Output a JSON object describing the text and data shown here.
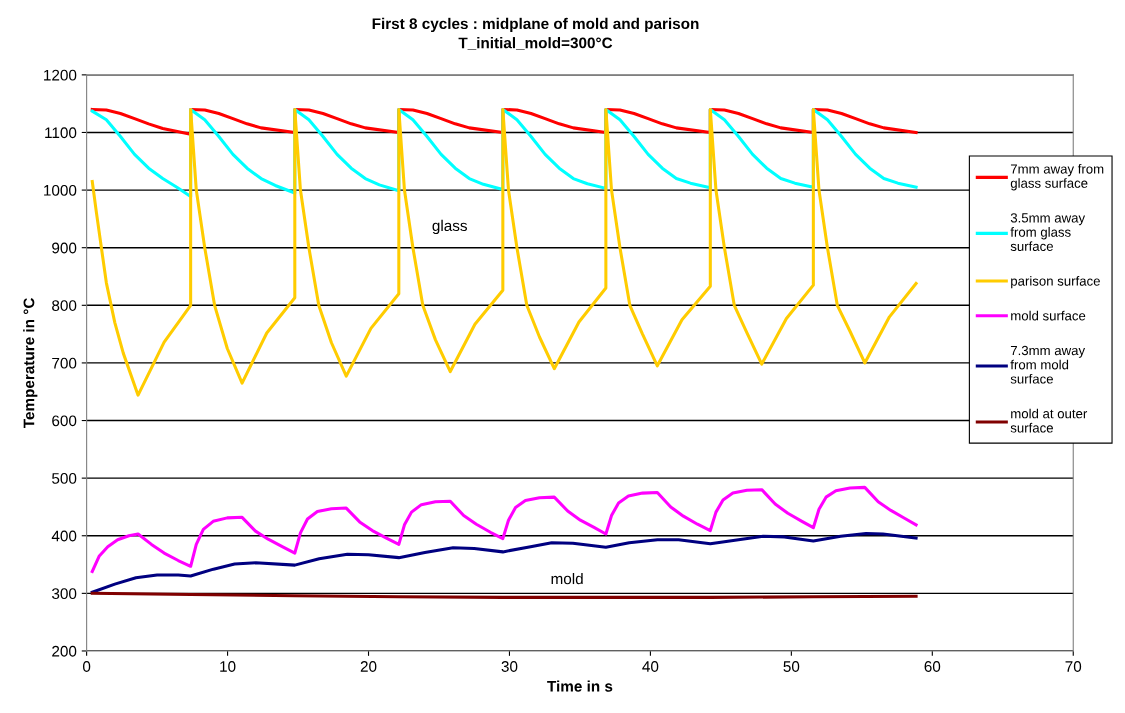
{
  "chart_data": {
    "type": "line",
    "title": "First 8 cycles : midplane of mold and parison",
    "subtitle": "T_initial_mold=300°C",
    "xlabel": "Time in s",
    "ylabel": "Temperature in °C",
    "xlim": [
      0,
      70
    ],
    "xticks": [
      0,
      10,
      20,
      30,
      40,
      50,
      60,
      70
    ],
    "ylim": [
      200,
      1200
    ],
    "yticks": [
      200,
      300,
      400,
      500,
      600,
      700,
      800,
      900,
      1000,
      1100,
      1200
    ],
    "grid": "y",
    "legend": "right",
    "marker": "none",
    "line_style": "solid",
    "annotations": [
      "glass",
      "mold"
    ],
    "series": [
      {
        "name": "7mm away from\nglass surface",
        "color": "#ff0000",
        "x": [
          0.4,
          1.4,
          2.4,
          3.4,
          4.4,
          5.4,
          7.38,
          7.38,
          8.38,
          9.38,
          10.38,
          11.38,
          12.38,
          14.77,
          14.77,
          15.77,
          16.77,
          17.77,
          18.77,
          19.77,
          22.15,
          22.15,
          23.15,
          24.15,
          25.15,
          26.15,
          27.15,
          29.53,
          29.53,
          30.53,
          31.53,
          32.53,
          33.53,
          34.53,
          36.84,
          36.84,
          37.84,
          38.84,
          39.84,
          40.84,
          41.84,
          44.25,
          44.25,
          45.25,
          46.25,
          47.25,
          48.25,
          49.25,
          51.56,
          51.56,
          52.56,
          53.56,
          54.56,
          55.56,
          56.56,
          58.85
        ],
        "values": [
          1140,
          1139,
          1133,
          1124,
          1115,
          1107,
          1097,
          1140,
          1139,
          1133,
          1124,
          1115,
          1108,
          1100,
          1140,
          1139,
          1133,
          1124,
          1115,
          1108,
          1100,
          1140,
          1139,
          1133,
          1124,
          1115,
          1108,
          1100,
          1140,
          1139,
          1133,
          1124,
          1115,
          1108,
          1100,
          1140,
          1139,
          1133,
          1124,
          1115,
          1108,
          1100,
          1140,
          1139,
          1133,
          1124,
          1115,
          1108,
          1100,
          1140,
          1139,
          1133,
          1124,
          1115,
          1108,
          1100
        ]
      },
      {
        "name": "3.5mm away\nfrom glass\nsurface",
        "color": "#00ffff",
        "x": [
          0.4,
          1.4,
          2.4,
          3.4,
          4.4,
          5.4,
          6.4,
          7.38,
          7.38,
          8.38,
          9.38,
          10.38,
          11.38,
          12.38,
          13.38,
          14.77,
          14.77,
          15.77,
          16.77,
          17.77,
          18.77,
          19.77,
          20.77,
          22.15,
          22.15,
          23.15,
          24.15,
          25.15,
          26.15,
          27.15,
          28.15,
          29.53,
          29.53,
          30.53,
          31.53,
          32.53,
          33.53,
          34.53,
          35.53,
          36.84,
          36.84,
          37.84,
          38.84,
          39.84,
          40.84,
          41.84,
          42.84,
          44.25,
          44.25,
          45.25,
          46.25,
          47.25,
          48.25,
          49.25,
          50.25,
          51.56,
          51.56,
          52.56,
          53.56,
          54.56,
          55.56,
          56.56,
          57.56,
          58.85
        ],
        "values": [
          1137,
          1122,
          1093,
          1062,
          1038,
          1020,
          1005,
          989,
          1140,
          1122,
          1093,
          1062,
          1038,
          1020,
          1008,
          995,
          1140,
          1122,
          1093,
          1062,
          1038,
          1020,
          1009,
          999,
          1140,
          1122,
          1093,
          1062,
          1038,
          1020,
          1010,
          1001,
          1140,
          1122,
          1093,
          1062,
          1038,
          1020,
          1011,
          1003,
          1140,
          1122,
          1093,
          1062,
          1038,
          1020,
          1012,
          1004,
          1140,
          1122,
          1093,
          1062,
          1038,
          1020,
          1012,
          1005,
          1140,
          1122,
          1093,
          1062,
          1038,
          1020,
          1012,
          1005
        ]
      },
      {
        "name": "parison surface",
        "color": "#ffcc00",
        "x": [
          0.4,
          0.7,
          1.4,
          2.0,
          2.6,
          3.65,
          5.5,
          7.38,
          7.38,
          7.78,
          8.38,
          9.08,
          9.98,
          11.03,
          12.78,
          14.77,
          14.77,
          15.17,
          15.77,
          16.47,
          17.37,
          18.42,
          20.17,
          22.15,
          22.15,
          22.55,
          23.15,
          23.85,
          24.75,
          25.8,
          27.55,
          29.53,
          29.53,
          29.93,
          30.53,
          31.23,
          32.13,
          33.18,
          34.93,
          36.84,
          36.84,
          37.24,
          37.84,
          38.54,
          39.44,
          40.49,
          42.24,
          44.25,
          44.25,
          44.65,
          45.25,
          45.95,
          46.85,
          47.9,
          49.65,
          51.56,
          51.56,
          51.96,
          52.56,
          53.26,
          54.16,
          55.21,
          56.96,
          58.85
        ],
        "values": [
          1015,
          960,
          839,
          770,
          717,
          644,
          736,
          800,
          1140,
          1000,
          900,
          800,
          725,
          665,
          752,
          813,
          1140,
          1000,
          900,
          800,
          735,
          677,
          760,
          820,
          1140,
          1000,
          900,
          800,
          740,
          685,
          767,
          826,
          1140,
          1000,
          900,
          800,
          745,
          690,
          771,
          830,
          1140,
          1000,
          900,
          800,
          750,
          695,
          775,
          833,
          1140,
          1000,
          900,
          800,
          752,
          698,
          777,
          835,
          1140,
          1000,
          900,
          800,
          755,
          700,
          780,
          838
        ]
      },
      {
        "name": "mold surface",
        "color": "#ff00ff",
        "x": [
          0.4,
          0.9,
          1.5,
          2.2,
          3.0,
          3.65,
          4.6,
          5.5,
          6.5,
          7.38,
          7.78,
          8.28,
          8.98,
          9.98,
          11.03,
          11.98,
          12.88,
          13.88,
          14.77,
          15.17,
          15.67,
          16.37,
          17.37,
          18.42,
          19.37,
          20.27,
          21.27,
          22.15,
          22.55,
          23.05,
          23.75,
          24.75,
          25.8,
          26.75,
          27.65,
          28.65,
          29.53,
          29.93,
          30.43,
          31.13,
          32.13,
          33.18,
          34.13,
          35.03,
          36.03,
          36.84,
          37.24,
          37.74,
          38.44,
          39.44,
          40.49,
          41.44,
          42.34,
          43.34,
          44.25,
          44.65,
          45.15,
          45.85,
          46.85,
          47.9,
          48.85,
          49.75,
          50.75,
          51.56,
          51.96,
          52.46,
          53.16,
          54.16,
          55.21,
          56.16,
          57.06,
          58.06,
          58.85
        ],
        "values": [
          338,
          365,
          381,
          393,
          400,
          403,
          385,
          370,
          357,
          347,
          385,
          411,
          425,
          431,
          432,
          408,
          394,
          381,
          370,
          405,
          429,
          442,
          447,
          448,
          424,
          409,
          396,
          385,
          419,
          441,
          454,
          459,
          460,
          435,
          420,
          406,
          395,
          427,
          449,
          461,
          466,
          467,
          443,
          427,
          414,
          403,
          435,
          457,
          469,
          474,
          475,
          450,
          434,
          420,
          409,
          441,
          462,
          474,
          479,
          480,
          455,
          439,
          425,
          414,
          446,
          467,
          478,
          483,
          484,
          459,
          444,
          430,
          419
        ]
      },
      {
        "name": "7.3mm away\nfrom mold\nsurface",
        "color": "#000080",
        "x": [
          0.4,
          2,
          3.5,
          5,
          6.5,
          7.38,
          9,
          10.5,
          12,
          14.77,
          16.5,
          18.5,
          20,
          22.15,
          24,
          26,
          27.5,
          29.53,
          31.5,
          33,
          34.5,
          36.84,
          38.5,
          40.5,
          42,
          44.25,
          46,
          48,
          49.5,
          51.56,
          53.5,
          55.3,
          56.5,
          58.85
        ],
        "values": [
          302,
          316,
          327,
          332,
          332,
          330,
          342,
          351,
          353,
          349,
          360,
          368,
          367,
          362,
          371,
          379,
          378,
          372,
          381,
          388,
          387,
          380,
          388,
          393,
          393,
          386,
          392,
          399,
          398,
          391,
          399,
          404,
          403,
          396
        ]
      },
      {
        "name": "mold at outer\nsurface",
        "color": "#800000",
        "x": [
          0.4,
          7.38,
          14.77,
          22.15,
          29.53,
          36.84,
          44.25,
          51.56,
          58.85
        ],
        "values": [
          300,
          298,
          296,
          294,
          293,
          293,
          293,
          294,
          295
        ]
      }
    ]
  }
}
